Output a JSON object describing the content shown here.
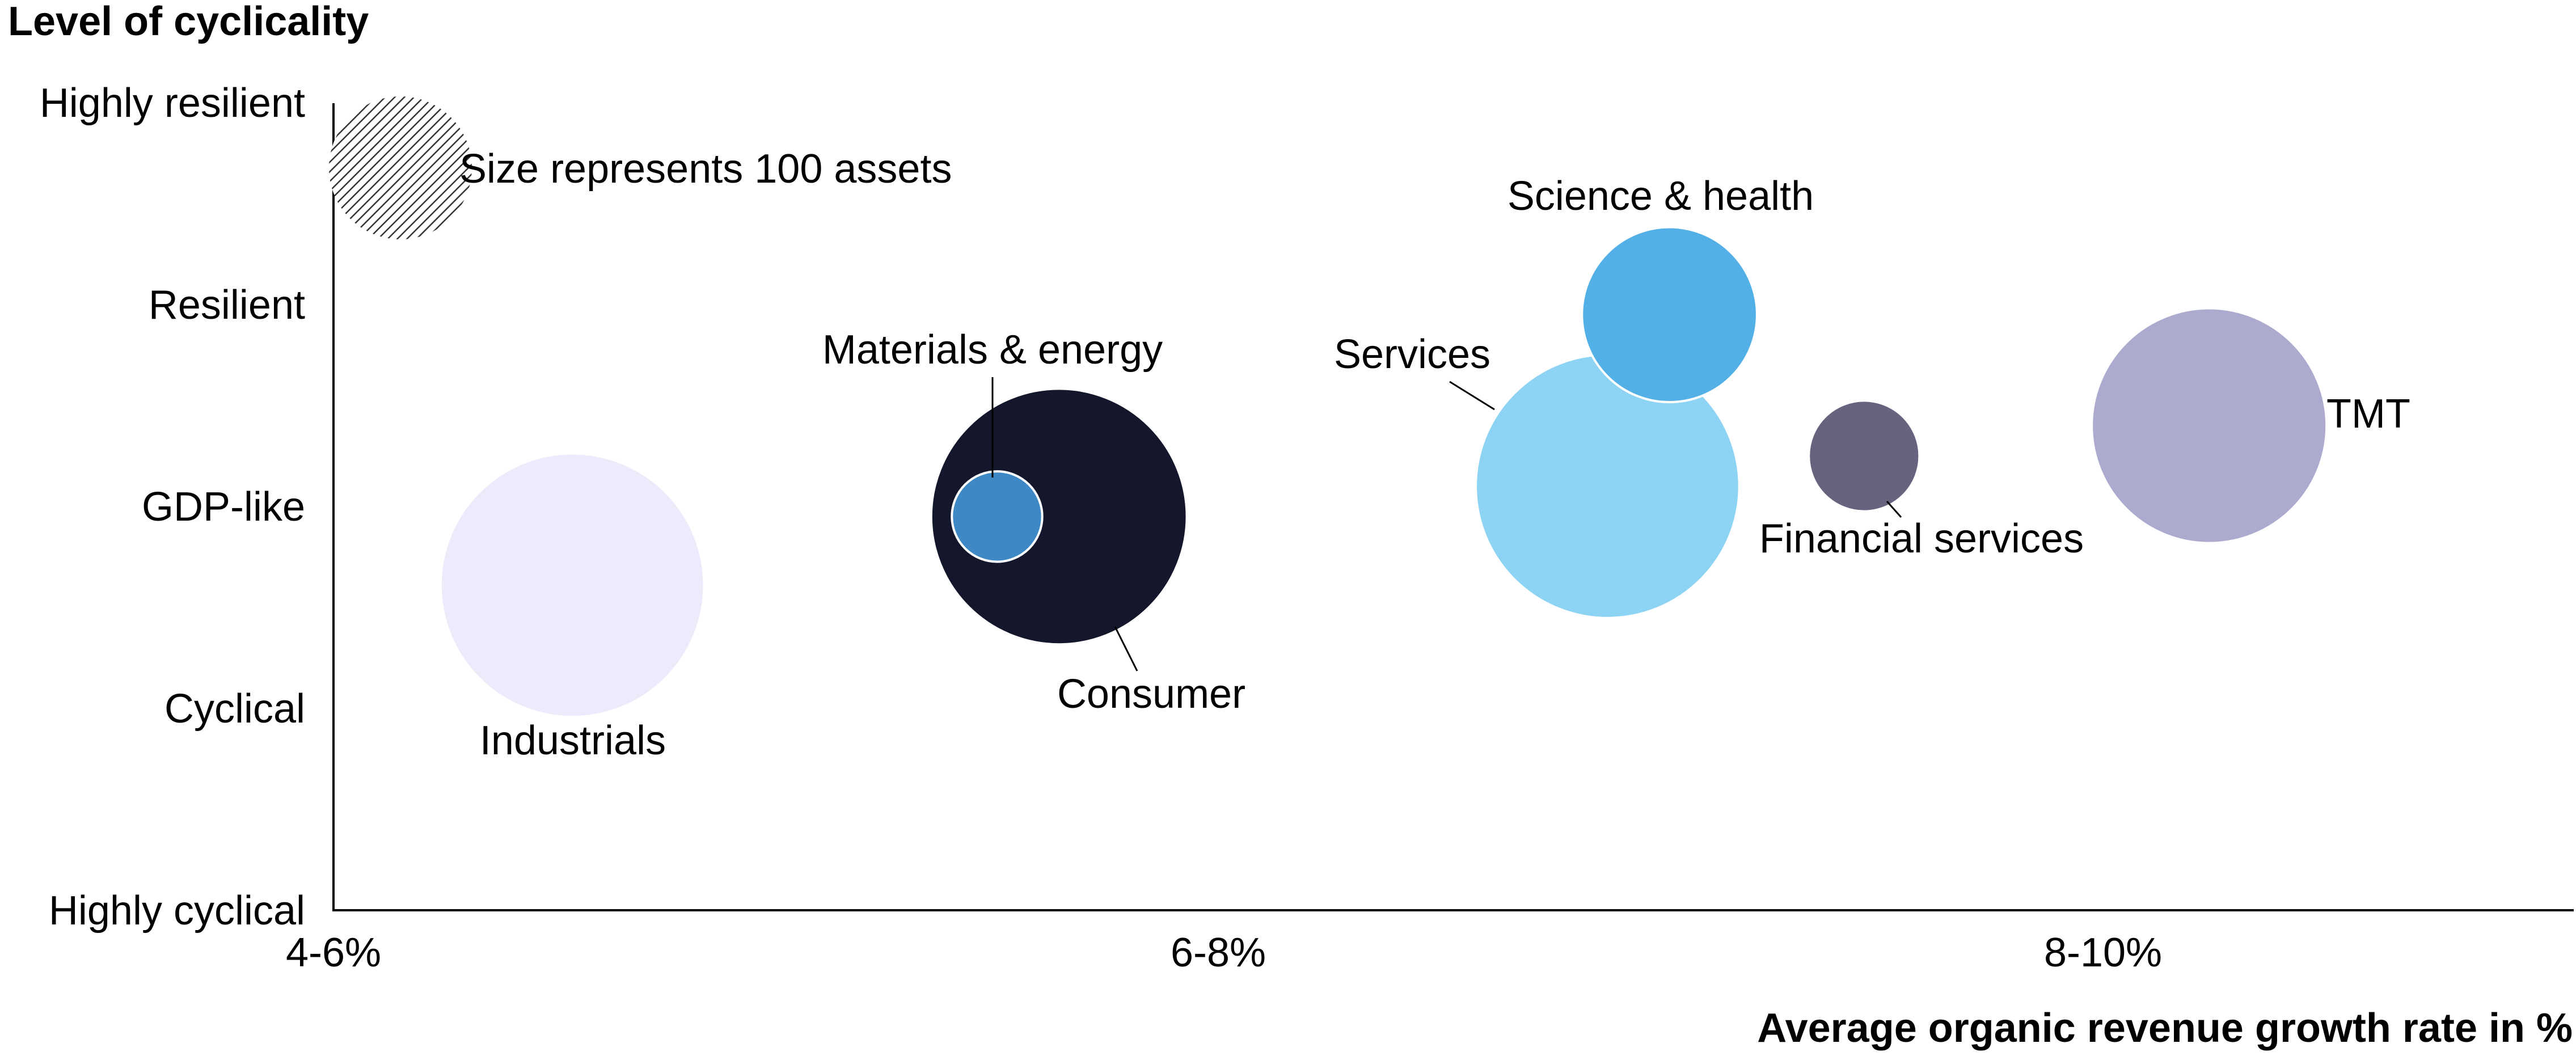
{
  "chart_data": {
    "type": "bubble",
    "xlabel": "Average organic revenue growth rate in %",
    "ylabel": "Level of cyclicality",
    "x_categories": [
      "4-6%",
      "6-8%",
      "8-10%"
    ],
    "y_categories": [
      "Highly cyclical",
      "Cyclical",
      "GDP-like",
      "Resilient",
      "Highly resilient"
    ],
    "x_range": [
      0,
      2.55
    ],
    "y_range": [
      0,
      4
    ],
    "size_legend": {
      "label": "Size represents 100 assets",
      "value": 100,
      "pattern": "hatched"
    },
    "series": [
      {
        "name": "Industrials",
        "x": 0.27,
        "y": 1.61,
        "value": 340,
        "color": "#ECEBFB"
      },
      {
        "name": "Consumer",
        "x": 0.82,
        "y": 1.95,
        "value": 320,
        "color": "#14172B"
      },
      {
        "name": "Materials & energy",
        "x": 0.75,
        "y": 1.95,
        "value": 40,
        "color": "#3D88C5"
      },
      {
        "name": "Services",
        "x": 1.44,
        "y": 2.1,
        "value": 340,
        "color": "#8DD3F3"
      },
      {
        "name": "Science & health",
        "x": 1.51,
        "y": 2.95,
        "value": 150,
        "color": "#52B0E6"
      },
      {
        "name": "Financial services",
        "x": 1.73,
        "y": 2.25,
        "value": 60,
        "color": "#66637F"
      },
      {
        "name": "TMT",
        "x": 2.12,
        "y": 2.4,
        "value": 270,
        "color": "#ACABCF"
      }
    ]
  }
}
